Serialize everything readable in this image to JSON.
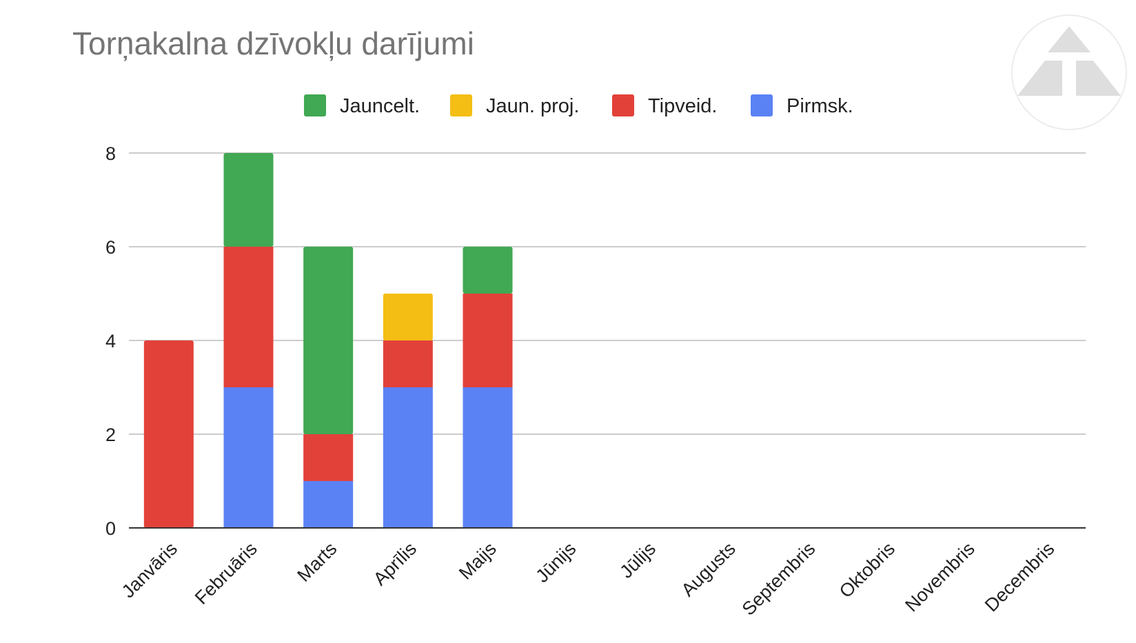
{
  "chart_data": {
    "type": "bar",
    "stacked": true,
    "title": "Torņakalna dzīvokļu darījumi",
    "xlabel": "",
    "ylabel": "",
    "ylim": [
      0,
      8
    ],
    "yticks": [
      0,
      2,
      4,
      6,
      8
    ],
    "grid": true,
    "legend_position": "top",
    "categories": [
      "Janvāris",
      "Februāris",
      "Marts",
      "Aprīlis",
      "Maijs",
      "Jūnijs",
      "Jūlijs",
      "Augusts",
      "Septembris",
      "Oktobris",
      "Novembris",
      "Decembris"
    ],
    "series": [
      {
        "name": "Pirmsk.",
        "color": "#5b82f4",
        "values": [
          0,
          3,
          1,
          3,
          3,
          0,
          0,
          0,
          0,
          0,
          0,
          0
        ]
      },
      {
        "name": "Tipveid.",
        "color": "#e2413a",
        "values": [
          4,
          3,
          1,
          1,
          2,
          0,
          0,
          0,
          0,
          0,
          0,
          0
        ]
      },
      {
        "name": "Jaun. proj.",
        "color": "#f4be14",
        "values": [
          0,
          0,
          0,
          1,
          0,
          0,
          0,
          0,
          0,
          0,
          0,
          0
        ]
      },
      {
        "name": "Jauncelt.",
        "color": "#41a853",
        "values": [
          0,
          2,
          4,
          0,
          1,
          0,
          0,
          0,
          0,
          0,
          0,
          0
        ]
      }
    ],
    "legend_order": [
      "Jauncelt.",
      "Jaun. proj.",
      "Tipveid.",
      "Pirmsk."
    ]
  },
  "logo": {
    "name": "triangle-logo"
  }
}
